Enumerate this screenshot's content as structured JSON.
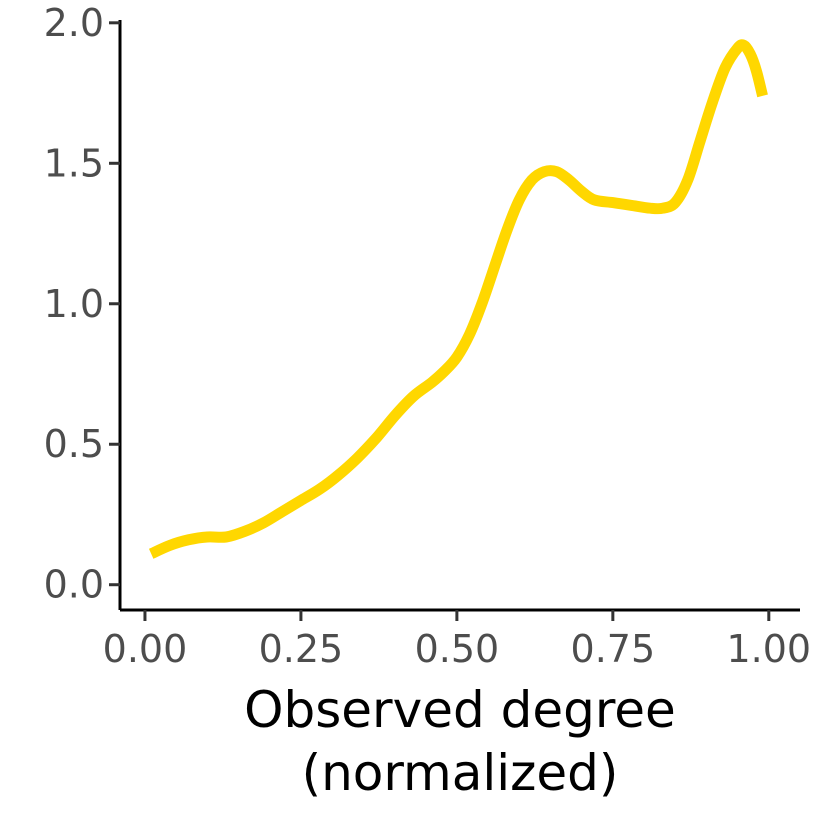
{
  "chart_data": {
    "type": "line",
    "title": "",
    "xlabel_lines": [
      "Observed degree",
      "(normalized)"
    ],
    "ylabel": "",
    "xlim": [
      -0.04,
      1.05
    ],
    "ylim": [
      -0.09,
      2.01
    ],
    "x_ticks": [
      0.0,
      0.25,
      0.5,
      0.75,
      1.0
    ],
    "x_tick_labels": [
      "0.00",
      "0.25",
      "0.50",
      "0.75",
      "1.00"
    ],
    "y_ticks": [
      0.0,
      0.5,
      1.0,
      1.5,
      2.0
    ],
    "y_tick_labels": [
      "0.0",
      "0.5",
      "1.0",
      "1.5",
      "2.0"
    ],
    "grid": false,
    "legend": "none",
    "series": [
      {
        "color": "#FFD700",
        "points": [
          [
            0.01,
            0.11
          ],
          [
            0.04,
            0.14
          ],
          [
            0.07,
            0.16
          ],
          [
            0.1,
            0.17
          ],
          [
            0.13,
            0.17
          ],
          [
            0.16,
            0.19
          ],
          [
            0.19,
            0.22
          ],
          [
            0.22,
            0.26
          ],
          [
            0.25,
            0.3
          ],
          [
            0.28,
            0.34
          ],
          [
            0.31,
            0.39
          ],
          [
            0.34,
            0.45
          ],
          [
            0.37,
            0.52
          ],
          [
            0.4,
            0.6
          ],
          [
            0.43,
            0.67
          ],
          [
            0.46,
            0.72
          ],
          [
            0.48,
            0.76
          ],
          [
            0.5,
            0.81
          ],
          [
            0.52,
            0.89
          ],
          [
            0.54,
            1.0
          ],
          [
            0.56,
            1.13
          ],
          [
            0.58,
            1.26
          ],
          [
            0.6,
            1.37
          ],
          [
            0.62,
            1.44
          ],
          [
            0.64,
            1.47
          ],
          [
            0.66,
            1.47
          ],
          [
            0.68,
            1.44
          ],
          [
            0.7,
            1.4
          ],
          [
            0.72,
            1.37
          ],
          [
            0.75,
            1.36
          ],
          [
            0.78,
            1.35
          ],
          [
            0.81,
            1.34
          ],
          [
            0.83,
            1.34
          ],
          [
            0.85,
            1.36
          ],
          [
            0.87,
            1.44
          ],
          [
            0.89,
            1.58
          ],
          [
            0.91,
            1.72
          ],
          [
            0.93,
            1.84
          ],
          [
            0.95,
            1.91
          ],
          [
            0.96,
            1.92
          ],
          [
            0.97,
            1.89
          ],
          [
            0.98,
            1.83
          ],
          [
            0.99,
            1.74
          ]
        ]
      }
    ]
  }
}
